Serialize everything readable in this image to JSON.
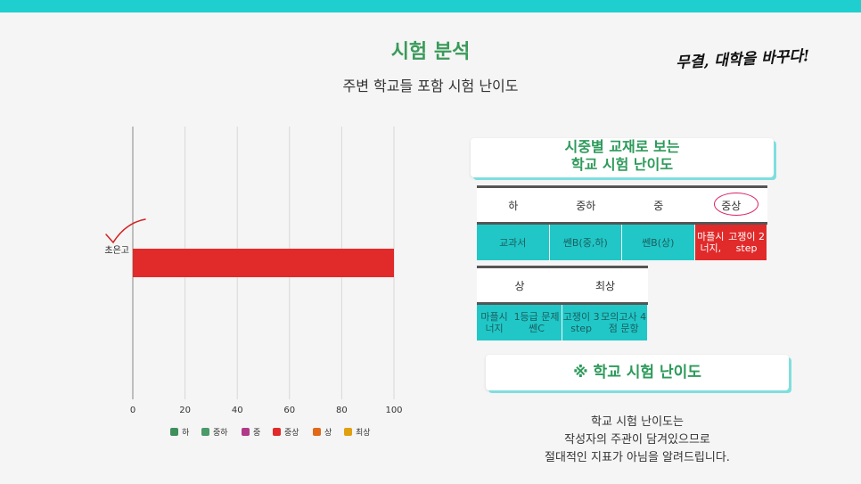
{
  "title": "시험 분석",
  "subtitle": "주변 학교들 포함 시험 난이도",
  "slogan": "무결, 대학을 바꾸다!",
  "card1": {
    "line1": "시중별 교재로 보는",
    "line2": "학교 시험 난이도"
  },
  "table1": {
    "headers": [
      "하",
      "중하",
      "중",
      "중상"
    ],
    "cells": [
      [
        "교과서"
      ],
      [
        "쎈B",
        "(중,하)"
      ],
      [
        "쎈B",
        "(상)"
      ],
      [
        "마플시너지,",
        "고쟁이 2 step"
      ]
    ]
  },
  "table2": {
    "headers": [
      "상",
      "최상"
    ],
    "cells": [
      [
        "마플시너지",
        "1등급 문제 쎈C"
      ],
      [
        "고쟁이 3 step",
        "모의고사 4점 문항"
      ]
    ]
  },
  "card2": "※ 학교 시험 난이도",
  "note": [
    "학교 시험 난이도는",
    "작성자의 주관이 담겨있으므로",
    "절대적인 지표가 아님을 알려드립니다."
  ],
  "colors": {
    "accent": "#1fcfcf",
    "title": "#3a9a5a",
    "bar": "#e12a2a",
    "teal": "#21c7c7"
  },
  "chart_data": {
    "type": "bar",
    "orientation": "horizontal",
    "categories": [
      "초은고"
    ],
    "values": [
      100
    ],
    "xlim": [
      0,
      100
    ],
    "xticks": [
      0,
      20,
      40,
      60,
      80,
      100
    ],
    "grid": true,
    "legend_position": "bottom",
    "legend": [
      {
        "name": "하",
        "color": "#3f8f5c"
      },
      {
        "name": "중하",
        "color": "#4a9a6a"
      },
      {
        "name": "중",
        "color": "#b03a8a"
      },
      {
        "name": "중상",
        "color": "#e12a2a"
      },
      {
        "name": "상",
        "color": "#e06a1a"
      },
      {
        "name": "최상",
        "color": "#e0a010"
      }
    ]
  }
}
